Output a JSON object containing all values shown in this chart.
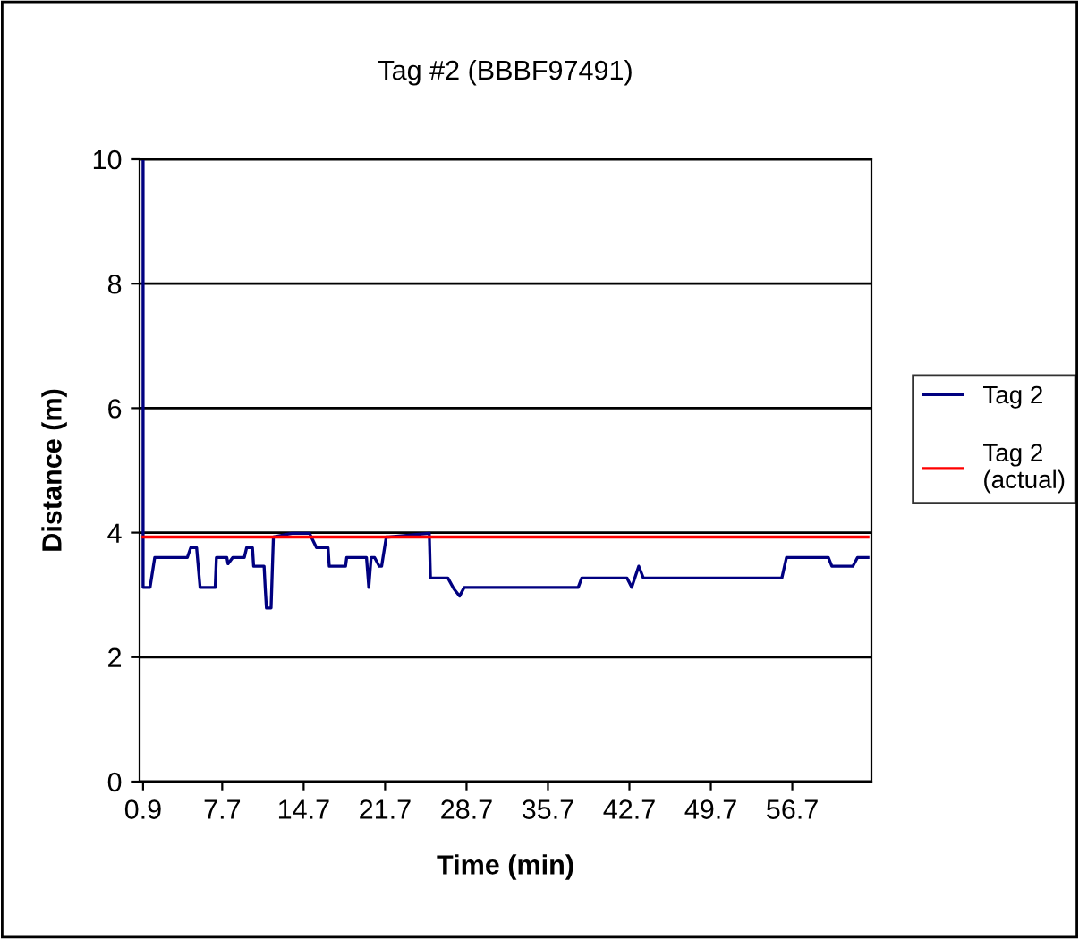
{
  "chart_data": {
    "type": "line",
    "title": "Tag #2 (BBBF97491)",
    "xlabel": "Time (min)",
    "ylabel": "Distance (m)",
    "xlim": [
      0.6,
      63.5
    ],
    "xticks": [
      0.9,
      7.7,
      14.7,
      21.7,
      28.7,
      35.7,
      42.7,
      49.7,
      56.7
    ],
    "ylim": [
      0,
      10
    ],
    "yticks": [
      0,
      2,
      4,
      6,
      8,
      10
    ],
    "grid": "y",
    "legend": "right",
    "marker": "none",
    "line_style": "solid",
    "series": [
      {
        "name": "Tag 2",
        "color": "#000080",
        "x": [
          0.9,
          0.9,
          1.0,
          1.5,
          1.9,
          4.7,
          5.0,
          5.5,
          5.8,
          7.1,
          7.2,
          8.1,
          8.2,
          8.6,
          9.6,
          9.8,
          10.3,
          10.4,
          11.3,
          11.4,
          11.5,
          11.9,
          12.1,
          13.7,
          15.2,
          15.8,
          16.8,
          16.9,
          18.3,
          18.4,
          20.1,
          20.3,
          20.5,
          20.8,
          21.2,
          21.4,
          21.8,
          22.0,
          25.5,
          25.6,
          27.1,
          27.6,
          28.1,
          28.5,
          38.3,
          38.6,
          42.5,
          42.9,
          43.5,
          43.9,
          44.2,
          55.8,
          56.2,
          59.8,
          60.1,
          61.9,
          62.3,
          63.2
        ],
        "values": [
          10,
          3.12,
          3.12,
          3.12,
          3.6,
          3.6,
          3.76,
          3.76,
          3.12,
          3.12,
          3.6,
          3.6,
          3.5,
          3.6,
          3.6,
          3.76,
          3.76,
          3.46,
          3.46,
          3.1,
          2.79,
          2.79,
          3.93,
          3.99,
          3.99,
          3.76,
          3.76,
          3.46,
          3.46,
          3.6,
          3.6,
          3.12,
          3.6,
          3.6,
          3.46,
          3.46,
          3.93,
          3.93,
          3.99,
          3.27,
          3.27,
          3.1,
          2.98,
          3.12,
          3.12,
          3.27,
          3.27,
          3.12,
          3.46,
          3.27,
          3.27,
          3.27,
          3.6,
          3.6,
          3.46,
          3.46,
          3.6,
          3.6
        ]
      },
      {
        "name": "Tag 2\n(actual)",
        "color": "#ff0000",
        "x": [
          0.9,
          63.2
        ],
        "values": [
          3.93,
          3.93
        ]
      }
    ]
  }
}
